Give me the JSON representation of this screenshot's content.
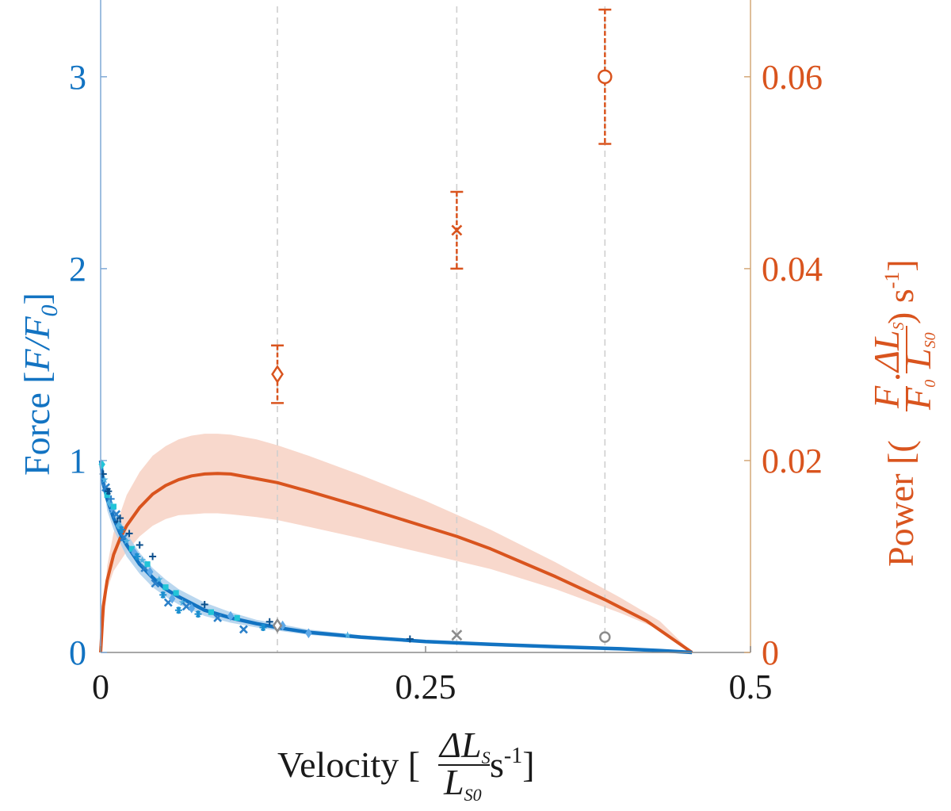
{
  "chart_data": {
    "type": "line",
    "title": "",
    "x_axis": {
      "label_prefix": "Velocity [",
      "label_num": "ΔL",
      "label_num_sub": "S",
      "label_den": "L",
      "label_den_sub": "S0",
      "label_unit": " s",
      "label_unit_sup": "-1",
      "label_suffix": "]",
      "range": [
        0,
        0.5
      ],
      "ticks": [
        0,
        0.25,
        0.5
      ],
      "tick_labels": [
        "0",
        "0.25",
        "0.5"
      ]
    },
    "y_left": {
      "label_text": "Force [",
      "label_italic": "F/F",
      "label_sub": "0",
      "label_suffix": "]",
      "range": [
        0,
        3.4
      ],
      "ticks": [
        0,
        1,
        2,
        3
      ],
      "tick_labels": [
        "0",
        "1",
        "2",
        "3"
      ],
      "color": "#1273c2"
    },
    "y_right": {
      "label_text": "Power [(",
      "label_f_num": "F",
      "label_f_den": "F",
      "label_f_den_sub": "0",
      "label_dot": "·",
      "label_l_num": "ΔL",
      "label_l_num_sub": "S",
      "label_l_den": "L",
      "label_l_den_sub": "S0",
      "label_close": ") s",
      "label_sup": "-1",
      "label_suffix": "]",
      "range": [
        0,
        0.068
      ],
      "ticks": [
        0,
        0.02,
        0.04,
        0.06
      ],
      "tick_labels": [
        "0",
        "0.02",
        "0.04",
        "0.06"
      ],
      "color": "#d9541e"
    },
    "grid": "off",
    "vertical_guides": [
      0.136,
      0.274,
      0.388
    ],
    "force_curve": {
      "color": "#1273c2",
      "band_color": "#a9cdeb",
      "points": [
        [
          0,
          1.0
        ],
        [
          0.002,
          0.88
        ],
        [
          0.005,
          0.8
        ],
        [
          0.01,
          0.7
        ],
        [
          0.015,
          0.62
        ],
        [
          0.02,
          0.56
        ],
        [
          0.03,
          0.46
        ],
        [
          0.04,
          0.39
        ],
        [
          0.05,
          0.33
        ],
        [
          0.06,
          0.29
        ],
        [
          0.08,
          0.22
        ],
        [
          0.1,
          0.18
        ],
        [
          0.12,
          0.15
        ],
        [
          0.14,
          0.125
        ],
        [
          0.16,
          0.105
        ],
        [
          0.2,
          0.08
        ],
        [
          0.25,
          0.057
        ],
        [
          0.3,
          0.042
        ],
        [
          0.35,
          0.03
        ],
        [
          0.4,
          0.019
        ],
        [
          0.43,
          0.01
        ],
        [
          0.455,
          0.0
        ]
      ],
      "band_upper": [
        [
          0,
          1.0
        ],
        [
          0.005,
          0.86
        ],
        [
          0.01,
          0.76
        ],
        [
          0.02,
          0.62
        ],
        [
          0.03,
          0.52
        ],
        [
          0.04,
          0.44
        ],
        [
          0.05,
          0.38
        ],
        [
          0.06,
          0.33
        ],
        [
          0.08,
          0.26
        ],
        [
          0.1,
          0.21
        ],
        [
          0.12,
          0.17
        ],
        [
          0.14,
          0.145
        ],
        [
          0.16,
          0.12
        ],
        [
          0.2,
          0.09
        ],
        [
          0.25,
          0.062
        ]
      ],
      "band_lower": [
        [
          0,
          1.0
        ],
        [
          0.005,
          0.74
        ],
        [
          0.01,
          0.64
        ],
        [
          0.02,
          0.5
        ],
        [
          0.03,
          0.41
        ],
        [
          0.04,
          0.34
        ],
        [
          0.05,
          0.29
        ],
        [
          0.06,
          0.25
        ],
        [
          0.08,
          0.19
        ],
        [
          0.1,
          0.155
        ],
        [
          0.12,
          0.13
        ],
        [
          0.14,
          0.11
        ],
        [
          0.16,
          0.092
        ],
        [
          0.2,
          0.07
        ],
        [
          0.25,
          0.052
        ]
      ]
    },
    "power_curve": {
      "color": "#d9541e",
      "band_color": "#f7d4c6",
      "points": [
        [
          0,
          0.0
        ],
        [
          0.002,
          0.0048
        ],
        [
          0.005,
          0.0075
        ],
        [
          0.01,
          0.0102
        ],
        [
          0.015,
          0.0119
        ],
        [
          0.02,
          0.0132
        ],
        [
          0.03,
          0.0151
        ],
        [
          0.04,
          0.0165
        ],
        [
          0.05,
          0.0174
        ],
        [
          0.06,
          0.018
        ],
        [
          0.07,
          0.0184
        ],
        [
          0.08,
          0.0186
        ],
        [
          0.09,
          0.01865
        ],
        [
          0.1,
          0.0186
        ],
        [
          0.12,
          0.0181
        ],
        [
          0.136,
          0.0177
        ],
        [
          0.16,
          0.0168
        ],
        [
          0.2,
          0.0152
        ],
        [
          0.25,
          0.0131
        ],
        [
          0.274,
          0.0121
        ],
        [
          0.3,
          0.0108
        ],
        [
          0.35,
          0.0079
        ],
        [
          0.388,
          0.0055
        ],
        [
          0.42,
          0.0033
        ],
        [
          0.455,
          0.0
        ]
      ],
      "band_upper": [
        [
          0,
          0.0
        ],
        [
          0.005,
          0.009
        ],
        [
          0.01,
          0.0125
        ],
        [
          0.02,
          0.0164
        ],
        [
          0.03,
          0.0188
        ],
        [
          0.04,
          0.0205
        ],
        [
          0.05,
          0.0215
        ],
        [
          0.06,
          0.0222
        ],
        [
          0.07,
          0.0226
        ],
        [
          0.08,
          0.0228
        ],
        [
          0.09,
          0.0228
        ],
        [
          0.1,
          0.0227
        ],
        [
          0.12,
          0.0222
        ],
        [
          0.136,
          0.0216
        ],
        [
          0.16,
          0.0205
        ],
        [
          0.2,
          0.0185
        ],
        [
          0.25,
          0.0158
        ],
        [
          0.3,
          0.0128
        ],
        [
          0.35,
          0.0094
        ],
        [
          0.4,
          0.0057
        ],
        [
          0.43,
          0.0033
        ],
        [
          0.455,
          0.0
        ]
      ],
      "band_lower": [
        [
          0,
          0.0
        ],
        [
          0.005,
          0.0065
        ],
        [
          0.01,
          0.0085
        ],
        [
          0.02,
          0.0105
        ],
        [
          0.03,
          0.0121
        ],
        [
          0.04,
          0.0132
        ],
        [
          0.05,
          0.0139
        ],
        [
          0.06,
          0.0143
        ],
        [
          0.07,
          0.0144
        ],
        [
          0.08,
          0.0145
        ],
        [
          0.09,
          0.0145
        ],
        [
          0.1,
          0.0144
        ],
        [
          0.12,
          0.0141
        ],
        [
          0.136,
          0.0138
        ],
        [
          0.16,
          0.0131
        ],
        [
          0.2,
          0.0119
        ],
        [
          0.25,
          0.0103
        ],
        [
          0.3,
          0.0087
        ],
        [
          0.35,
          0.0066
        ],
        [
          0.4,
          0.0041
        ],
        [
          0.43,
          0.0024
        ],
        [
          0.455,
          0.0
        ]
      ]
    },
    "power_measurements": [
      {
        "marker": "diamond",
        "x": 0.136,
        "y": 0.029,
        "err_low": 0.026,
        "err_high": 0.032
      },
      {
        "marker": "x",
        "x": 0.274,
        "y": 0.044,
        "err_low": 0.04,
        "err_high": 0.048
      },
      {
        "marker": "circle",
        "x": 0.388,
        "y": 0.06,
        "err_low": 0.053,
        "err_high": 0.067
      }
    ],
    "force_measurements": [
      {
        "marker": "diamond",
        "x": 0.136,
        "y": 0.14,
        "color": "#8c8c8c"
      },
      {
        "marker": "x",
        "x": 0.274,
        "y": 0.09,
        "color": "#8c8c8c"
      },
      {
        "marker": "circle",
        "x": 0.388,
        "y": 0.08,
        "color": "#8c8c8c"
      }
    ],
    "force_scatter": {
      "colors": [
        "#0a4f8c",
        "#2b80c9",
        "#4fb0e0",
        "#22c4d8",
        "#5ea9e8",
        "#1b8fd0"
      ],
      "markers": [
        "plus",
        "x",
        "star",
        "square",
        "diamond",
        "asterisk"
      ],
      "points": [
        [
          0.001,
          0.98,
          3,
          4
        ],
        [
          0.002,
          0.93,
          0,
          0
        ],
        [
          0.003,
          0.9,
          2,
          2
        ],
        [
          0.004,
          0.86,
          1,
          1
        ],
        [
          0.005,
          0.82,
          3,
          3
        ],
        [
          0.006,
          0.84,
          0,
          5
        ],
        [
          0.007,
          0.78,
          2,
          4
        ],
        [
          0.008,
          0.8,
          1,
          0
        ],
        [
          0.009,
          0.74,
          4,
          2
        ],
        [
          0.01,
          0.76,
          3,
          3
        ],
        [
          0.012,
          0.72,
          1,
          1
        ],
        [
          0.013,
          0.68,
          0,
          0
        ],
        [
          0.014,
          0.66,
          2,
          4
        ],
        [
          0.015,
          0.7,
          0,
          0
        ],
        [
          0.016,
          0.64,
          5,
          5
        ],
        [
          0.018,
          0.6,
          1,
          1
        ],
        [
          0.02,
          0.58,
          2,
          2
        ],
        [
          0.022,
          0.62,
          0,
          0
        ],
        [
          0.024,
          0.54,
          3,
          3
        ],
        [
          0.026,
          0.52,
          4,
          4
        ],
        [
          0.028,
          0.5,
          5,
          5
        ],
        [
          0.03,
          0.56,
          0,
          0
        ],
        [
          0.032,
          0.48,
          2,
          2
        ],
        [
          0.034,
          0.44,
          1,
          1
        ],
        [
          0.036,
          0.46,
          3,
          3
        ],
        [
          0.038,
          0.42,
          4,
          4
        ],
        [
          0.04,
          0.5,
          0,
          0
        ],
        [
          0.042,
          0.36,
          1,
          1
        ],
        [
          0.045,
          0.38,
          2,
          2
        ],
        [
          0.048,
          0.3,
          5,
          5
        ],
        [
          0.05,
          0.34,
          3,
          3
        ],
        [
          0.052,
          0.26,
          1,
          1
        ],
        [
          0.055,
          0.28,
          4,
          4
        ],
        [
          0.058,
          0.31,
          3,
          3
        ],
        [
          0.06,
          0.22,
          5,
          5
        ],
        [
          0.063,
          0.26,
          2,
          2
        ],
        [
          0.066,
          0.24,
          1,
          1
        ],
        [
          0.07,
          0.23,
          4,
          4
        ],
        [
          0.075,
          0.2,
          5,
          5
        ],
        [
          0.08,
          0.25,
          0,
          0
        ],
        [
          0.085,
          0.21,
          3,
          3
        ],
        [
          0.09,
          0.18,
          1,
          1
        ],
        [
          0.1,
          0.19,
          4,
          4
        ],
        [
          0.105,
          0.18,
          3,
          3
        ],
        [
          0.11,
          0.12,
          1,
          1
        ],
        [
          0.125,
          0.13,
          5,
          5
        ],
        [
          0.13,
          0.16,
          0,
          0
        ],
        [
          0.14,
          0.14,
          4,
          4
        ],
        [
          0.16,
          0.1,
          4,
          4
        ],
        [
          0.19,
          0.09,
          2,
          2
        ],
        [
          0.238,
          0.07,
          0,
          0
        ]
      ]
    }
  }
}
